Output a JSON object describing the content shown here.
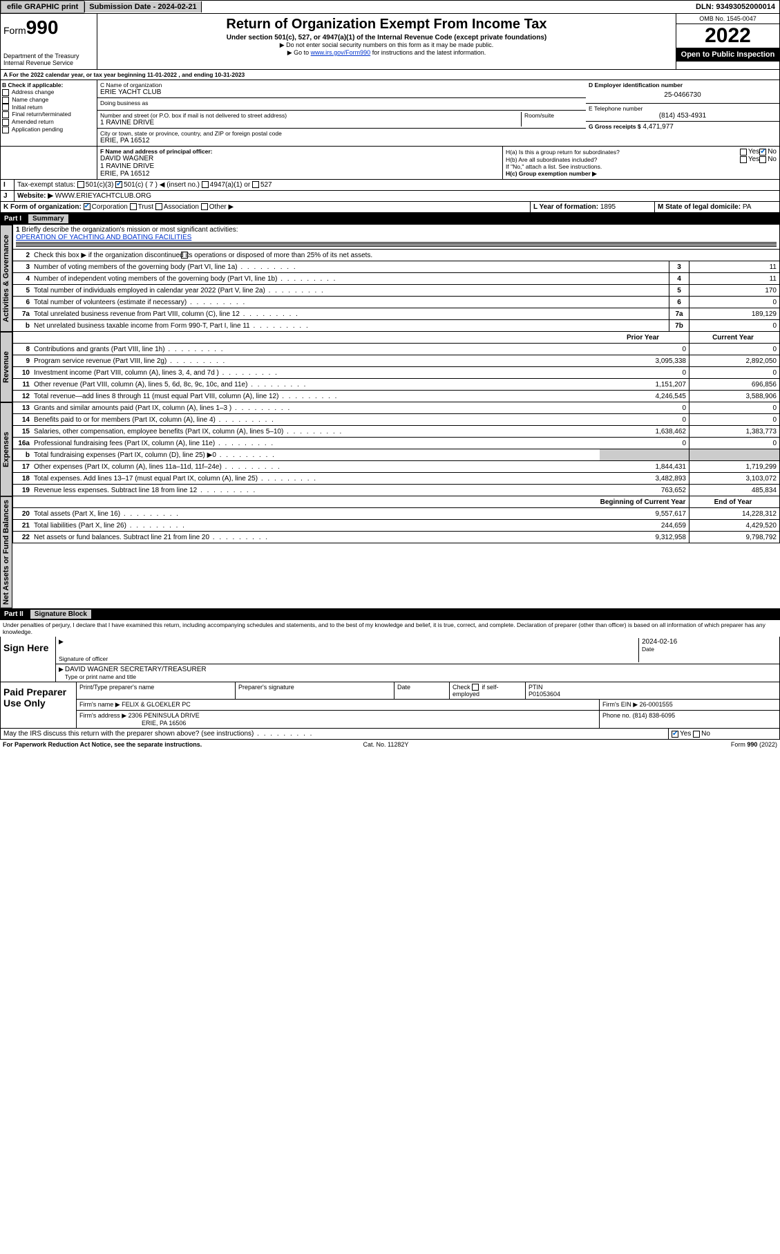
{
  "top": {
    "efile": "efile GRAPHIC print",
    "subdate_label": "Submission Date - 2024-02-21",
    "dln": "DLN: 93493052000014"
  },
  "header": {
    "form_prefix": "Form",
    "form_number": "990",
    "dept": "Department of the Treasury",
    "irs": "Internal Revenue Service",
    "title": "Return of Organization Exempt From Income Tax",
    "subtitle": "Under section 501(c), 527, or 4947(a)(1) of the Internal Revenue Code (except private foundations)",
    "note1": "▶ Do not enter social security numbers on this form as it may be made public.",
    "note2_pre": "▶ Go to ",
    "note2_link": "www.irs.gov/Form990",
    "note2_post": " for instructions and the latest information.",
    "omb": "OMB No. 1545-0047",
    "year": "2022",
    "open": "Open to Public Inspection"
  },
  "a_line": "For the 2022 calendar year, or tax year beginning 11-01-2022    , and ending 10-31-2023",
  "b": {
    "label": "B Check if applicable:",
    "opts": [
      "Address change",
      "Name change",
      "Initial return",
      "Final return/terminated",
      "Amended return",
      "Application pending"
    ]
  },
  "c": {
    "name_label": "C Name of organization",
    "name": "ERIE YACHT CLUB",
    "dba": "Doing business as",
    "street_label": "Number and street (or P.O. box if mail is not delivered to street address)",
    "room": "Room/suite",
    "street": "1 RAVINE DRIVE",
    "city_label": "City or town, state or province, country, and ZIP or foreign postal code",
    "city": "ERIE, PA  16512"
  },
  "d": {
    "label": "D Employer identification number",
    "ein": "25-0466730"
  },
  "e": {
    "label": "E Telephone number",
    "phone": "(814) 453-4931"
  },
  "g": {
    "label": "G Gross receipts $",
    "amount": "4,471,977"
  },
  "f": {
    "label": "F  Name and address of principal officer:",
    "name": "DAVID WAGNER",
    "street": "1 RAVINE DRIVE",
    "city": "ERIE, PA  16512"
  },
  "h": {
    "a": "H(a)  Is this a group return for subordinates?",
    "b": "H(b)  Are all subordinates included?",
    "b_note": "If \"No,\" attach a list. See instructions.",
    "c": "H(c)  Group exemption number ▶",
    "yes": "Yes",
    "no": "No"
  },
  "i": {
    "label": "Tax-exempt status:",
    "c3": "501(c)(3)",
    "c": "501(c) ( 7 ) ◀ (insert no.)",
    "a1": "4947(a)(1) or",
    "s527": "527"
  },
  "j": {
    "label": "Website: ▶",
    "url": "WWW.ERIEYACHTCLUB.ORG"
  },
  "k": {
    "label": "K Form of organization:",
    "corp": "Corporation",
    "trust": "Trust",
    "assoc": "Association",
    "other": "Other ▶"
  },
  "l": {
    "label": "L Year of formation:",
    "val": "1895"
  },
  "m": {
    "label": "M State of legal domicile:",
    "val": "PA"
  },
  "part1": {
    "name": "Part I",
    "title": "Summary"
  },
  "tabs": {
    "gov": "Activities & Governance",
    "rev": "Revenue",
    "exp": "Expenses",
    "net": "Net Assets or Fund Balances"
  },
  "s1": {
    "l1": "Briefly describe the organization's mission or most significant activities:",
    "l1v": "OPERATION OF YACHTING AND BOATING FACILITIES",
    "l2": "Check this box ▶        if the organization discontinued its operations or disposed of more than 25% of its net assets.",
    "rows": [
      {
        "n": "3",
        "t": "Number of voting members of the governing body (Part VI, line 1a)",
        "ln": "3",
        "v": "11"
      },
      {
        "n": "4",
        "t": "Number of independent voting members of the governing body (Part VI, line 1b)",
        "ln": "4",
        "v": "11"
      },
      {
        "n": "5",
        "t": "Total number of individuals employed in calendar year 2022 (Part V, line 2a)",
        "ln": "5",
        "v": "170"
      },
      {
        "n": "6",
        "t": "Total number of volunteers (estimate if necessary)",
        "ln": "6",
        "v": "0"
      },
      {
        "n": "7a",
        "t": "Total unrelated business revenue from Part VIII, column (C), line 12",
        "ln": "7a",
        "v": "189,129"
      },
      {
        "n": "b",
        "t": "Net unrelated business taxable income from Form 990-T, Part I, line 11",
        "ln": "7b",
        "v": "0"
      }
    ],
    "priorhdr": "Prior Year",
    "currhdr": "Current Year",
    "rev": [
      {
        "n": "8",
        "t": "Contributions and grants (Part VIII, line 1h)",
        "p": "0",
        "c": "0"
      },
      {
        "n": "9",
        "t": "Program service revenue (Part VIII, line 2g)",
        "p": "3,095,338",
        "c": "2,892,050"
      },
      {
        "n": "10",
        "t": "Investment income (Part VIII, column (A), lines 3, 4, and 7d )",
        "p": "0",
        "c": "0"
      },
      {
        "n": "11",
        "t": "Other revenue (Part VIII, column (A), lines 5, 6d, 8c, 9c, 10c, and 11e)",
        "p": "1,151,207",
        "c": "696,856"
      },
      {
        "n": "12",
        "t": "Total revenue—add lines 8 through 11 (must equal Part VIII, column (A), line 12)",
        "p": "4,246,545",
        "c": "3,588,906"
      }
    ],
    "exp": [
      {
        "n": "13",
        "t": "Grants and similar amounts paid (Part IX, column (A), lines 1–3 )",
        "p": "0",
        "c": "0"
      },
      {
        "n": "14",
        "t": "Benefits paid to or for members (Part IX, column (A), line 4)",
        "p": "0",
        "c": "0"
      },
      {
        "n": "15",
        "t": "Salaries, other compensation, employee benefits (Part IX, column (A), lines 5–10)",
        "p": "1,638,462",
        "c": "1,383,773"
      },
      {
        "n": "16a",
        "t": "Professional fundraising fees (Part IX, column (A), line 11e)",
        "p": "0",
        "c": "0"
      },
      {
        "n": "b",
        "t": "Total fundraising expenses (Part IX, column (D), line 25) ▶0",
        "p": "",
        "c": "",
        "gray": true
      },
      {
        "n": "17",
        "t": "Other expenses (Part IX, column (A), lines 11a–11d, 11f–24e)",
        "p": "1,844,431",
        "c": "1,719,299"
      },
      {
        "n": "18",
        "t": "Total expenses. Add lines 13–17 (must equal Part IX, column (A), line 25)",
        "p": "3,482,893",
        "c": "3,103,072"
      },
      {
        "n": "19",
        "t": "Revenue less expenses. Subtract line 18 from line 12",
        "p": "763,652",
        "c": "485,834"
      }
    ],
    "beghdr": "Beginning of Current Year",
    "endhdr": "End of Year",
    "net": [
      {
        "n": "20",
        "t": "Total assets (Part X, line 16)",
        "p": "9,557,617",
        "c": "14,228,312"
      },
      {
        "n": "21",
        "t": "Total liabilities (Part X, line 26)",
        "p": "244,659",
        "c": "4,429,520"
      },
      {
        "n": "22",
        "t": "Net assets or fund balances. Subtract line 21 from line 20",
        "p": "9,312,958",
        "c": "9,798,792"
      }
    ]
  },
  "part2": {
    "name": "Part II",
    "title": "Signature Block"
  },
  "sig": {
    "decl": "Under penalties of perjury, I declare that I have examined this return, including accompanying schedules and statements, and to the best of my knowledge and belief, it is true, correct, and complete. Declaration of preparer (other than officer) is based on all information of which preparer has any knowledge.",
    "sign_here": "Sign Here",
    "sig_officer": "Signature of officer",
    "date": "Date",
    "date_val": "2024-02-16",
    "name_title": "DAVID WAGNER  SECRETARY/TREASURER",
    "name_title_label": "Type or print name and title"
  },
  "paid": {
    "label": "Paid Preparer Use Only",
    "h1": "Print/Type preparer's name",
    "h2": "Preparer's signature",
    "h3": "Date",
    "h4_a": "Check",
    "h4_b": "if self-employed",
    "h5": "PTIN",
    "ptin": "P01053604",
    "firm_name_l": "Firm's name    ▶",
    "firm_name": "FELIX & GLOEKLER PC",
    "firm_ein_l": "Firm's EIN ▶",
    "firm_ein": "26-0001555",
    "firm_addr_l": "Firm's address ▶",
    "firm_addr1": "2306 PENINSULA DRIVE",
    "firm_addr2": "ERIE, PA  16506",
    "phone_l": "Phone no.",
    "phone": "(814) 838-6095"
  },
  "may": {
    "q": "May the IRS discuss this return with the preparer shown above? (see instructions)",
    "yes": "Yes",
    "no": "No"
  },
  "footer": {
    "pra": "For Paperwork Reduction Act Notice, see the separate instructions.",
    "cat": "Cat. No. 11282Y",
    "form": "Form 990 (2022)"
  }
}
